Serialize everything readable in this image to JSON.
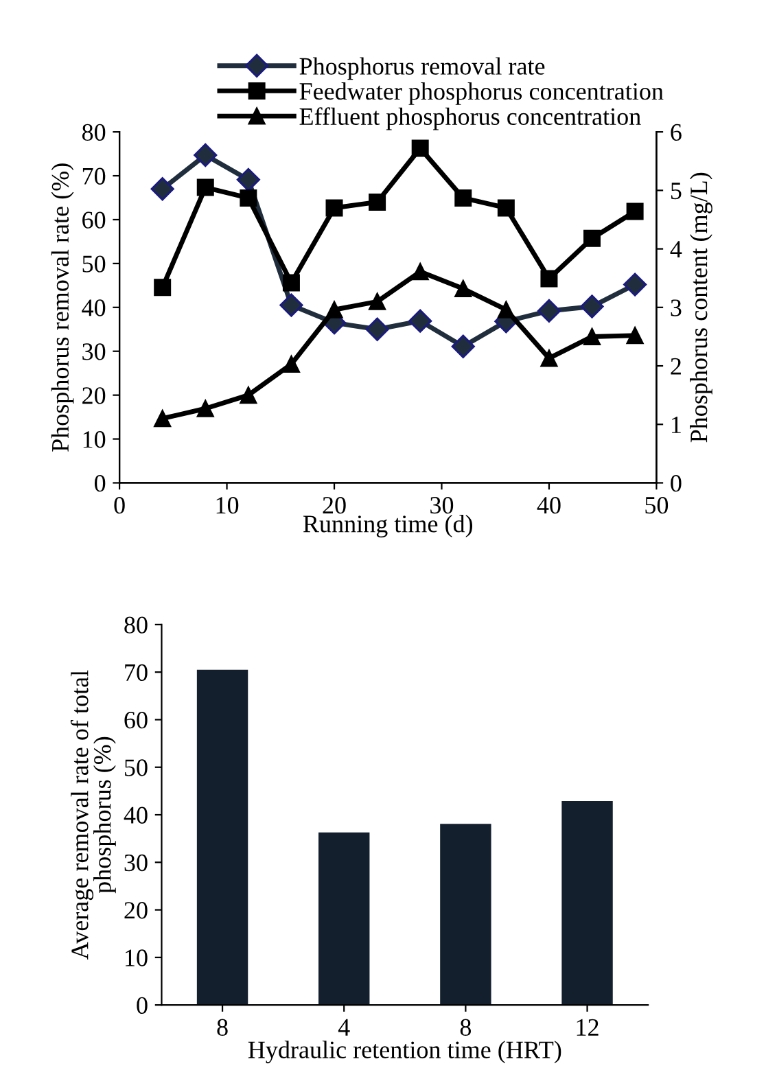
{
  "chart_data": [
    {
      "type": "line",
      "xlabel": "Running time (d)",
      "ylabel": "Phosphorus removal rate (%)",
      "y2label": "Phosphorus content (mg/L)",
      "x": [
        4,
        8,
        12,
        16,
        20,
        24,
        28,
        32,
        36,
        40,
        44,
        48
      ],
      "xlim": [
        0,
        50
      ],
      "xticks": [
        0,
        10,
        20,
        30,
        40,
        50
      ],
      "ylim": [
        0,
        80
      ],
      "yticks": [
        0,
        10,
        20,
        30,
        40,
        50,
        60,
        70,
        80
      ],
      "y2lim": [
        0,
        6
      ],
      "y2ticks": [
        0,
        1,
        2,
        3,
        4,
        5,
        6
      ],
      "legend": "top",
      "grid": false,
      "series": [
        {
          "name": "Phosphorus removal rate",
          "color": "#1f2d3d",
          "marker": "diamond",
          "values": [
            67.0,
            74.7,
            69.1,
            40.5,
            36.5,
            35.0,
            36.9,
            31.1,
            36.8,
            39.2,
            40.2,
            45.2
          ]
        },
        {
          "name": "Feedwater phosphorus concentration",
          "color": "#000000",
          "marker": "square",
          "axis": "y2",
          "values": [
            3.34,
            5.05,
            4.87,
            3.42,
            4.7,
            4.8,
            5.72,
            4.87,
            4.7,
            3.49,
            4.18,
            4.64
          ]
        },
        {
          "name": "Effluent phosphorus concentration",
          "color": "#000000",
          "marker": "triangle",
          "axis": "y2",
          "values": [
            1.1,
            1.27,
            1.5,
            2.03,
            2.96,
            3.1,
            3.61,
            3.32,
            2.96,
            2.13,
            2.5,
            2.52
          ]
        }
      ]
    },
    {
      "type": "bar",
      "xlabel": "Hydraulic retention time (HRT)",
      "ylabel": "Average removal rate of total phosphorus (%)",
      "categories": [
        "8",
        "4",
        "8",
        "12"
      ],
      "values": [
        70.5,
        36.3,
        38.1,
        42.9
      ],
      "color": "#141f2e",
      "ylim": [
        0,
        80
      ],
      "yticks": [
        0,
        10,
        20,
        30,
        40,
        50,
        60,
        70,
        80
      ],
      "grid": false
    }
  ]
}
